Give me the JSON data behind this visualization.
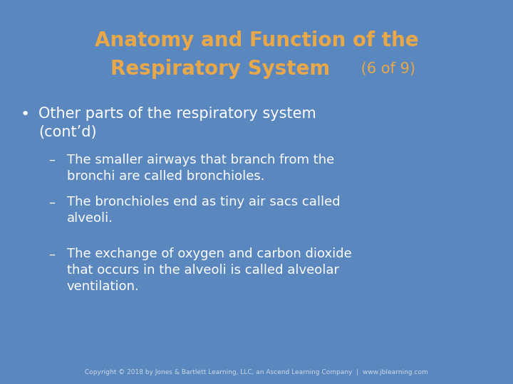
{
  "bg_color": "#5b87bf",
  "title_line1": "Anatomy and Function of the",
  "title_line2": "Respiratory System",
  "title_suffix": " (6 of 9)",
  "title_color": "#e8a84a",
  "title_bold_fontsize": 20,
  "title_suffix_fontsize": 15,
  "bullet_color": "#ffffff",
  "bullet_text": "Other parts of the respiratory system\n(cont’d)",
  "bullet_fontsize": 15,
  "sub_bullets": [
    "The smaller airways that branch from the\nbronchi are called bronchioles.",
    "The bronchioles end as tiny air sacs called\nalveoli.",
    "The exchange of oxygen and carbon dioxide\nthat occurs in the alveoli is called alveolar\nventilation."
  ],
  "sub_bullet_fontsize": 13,
  "copyright_text": "Copyright © 2018 by Jones & Bartlett Learning, LLC, an Ascend Learning Company  |  www.jblearning.com",
  "copyright_fontsize": 6.5,
  "copyright_color": "#ccd9e8"
}
